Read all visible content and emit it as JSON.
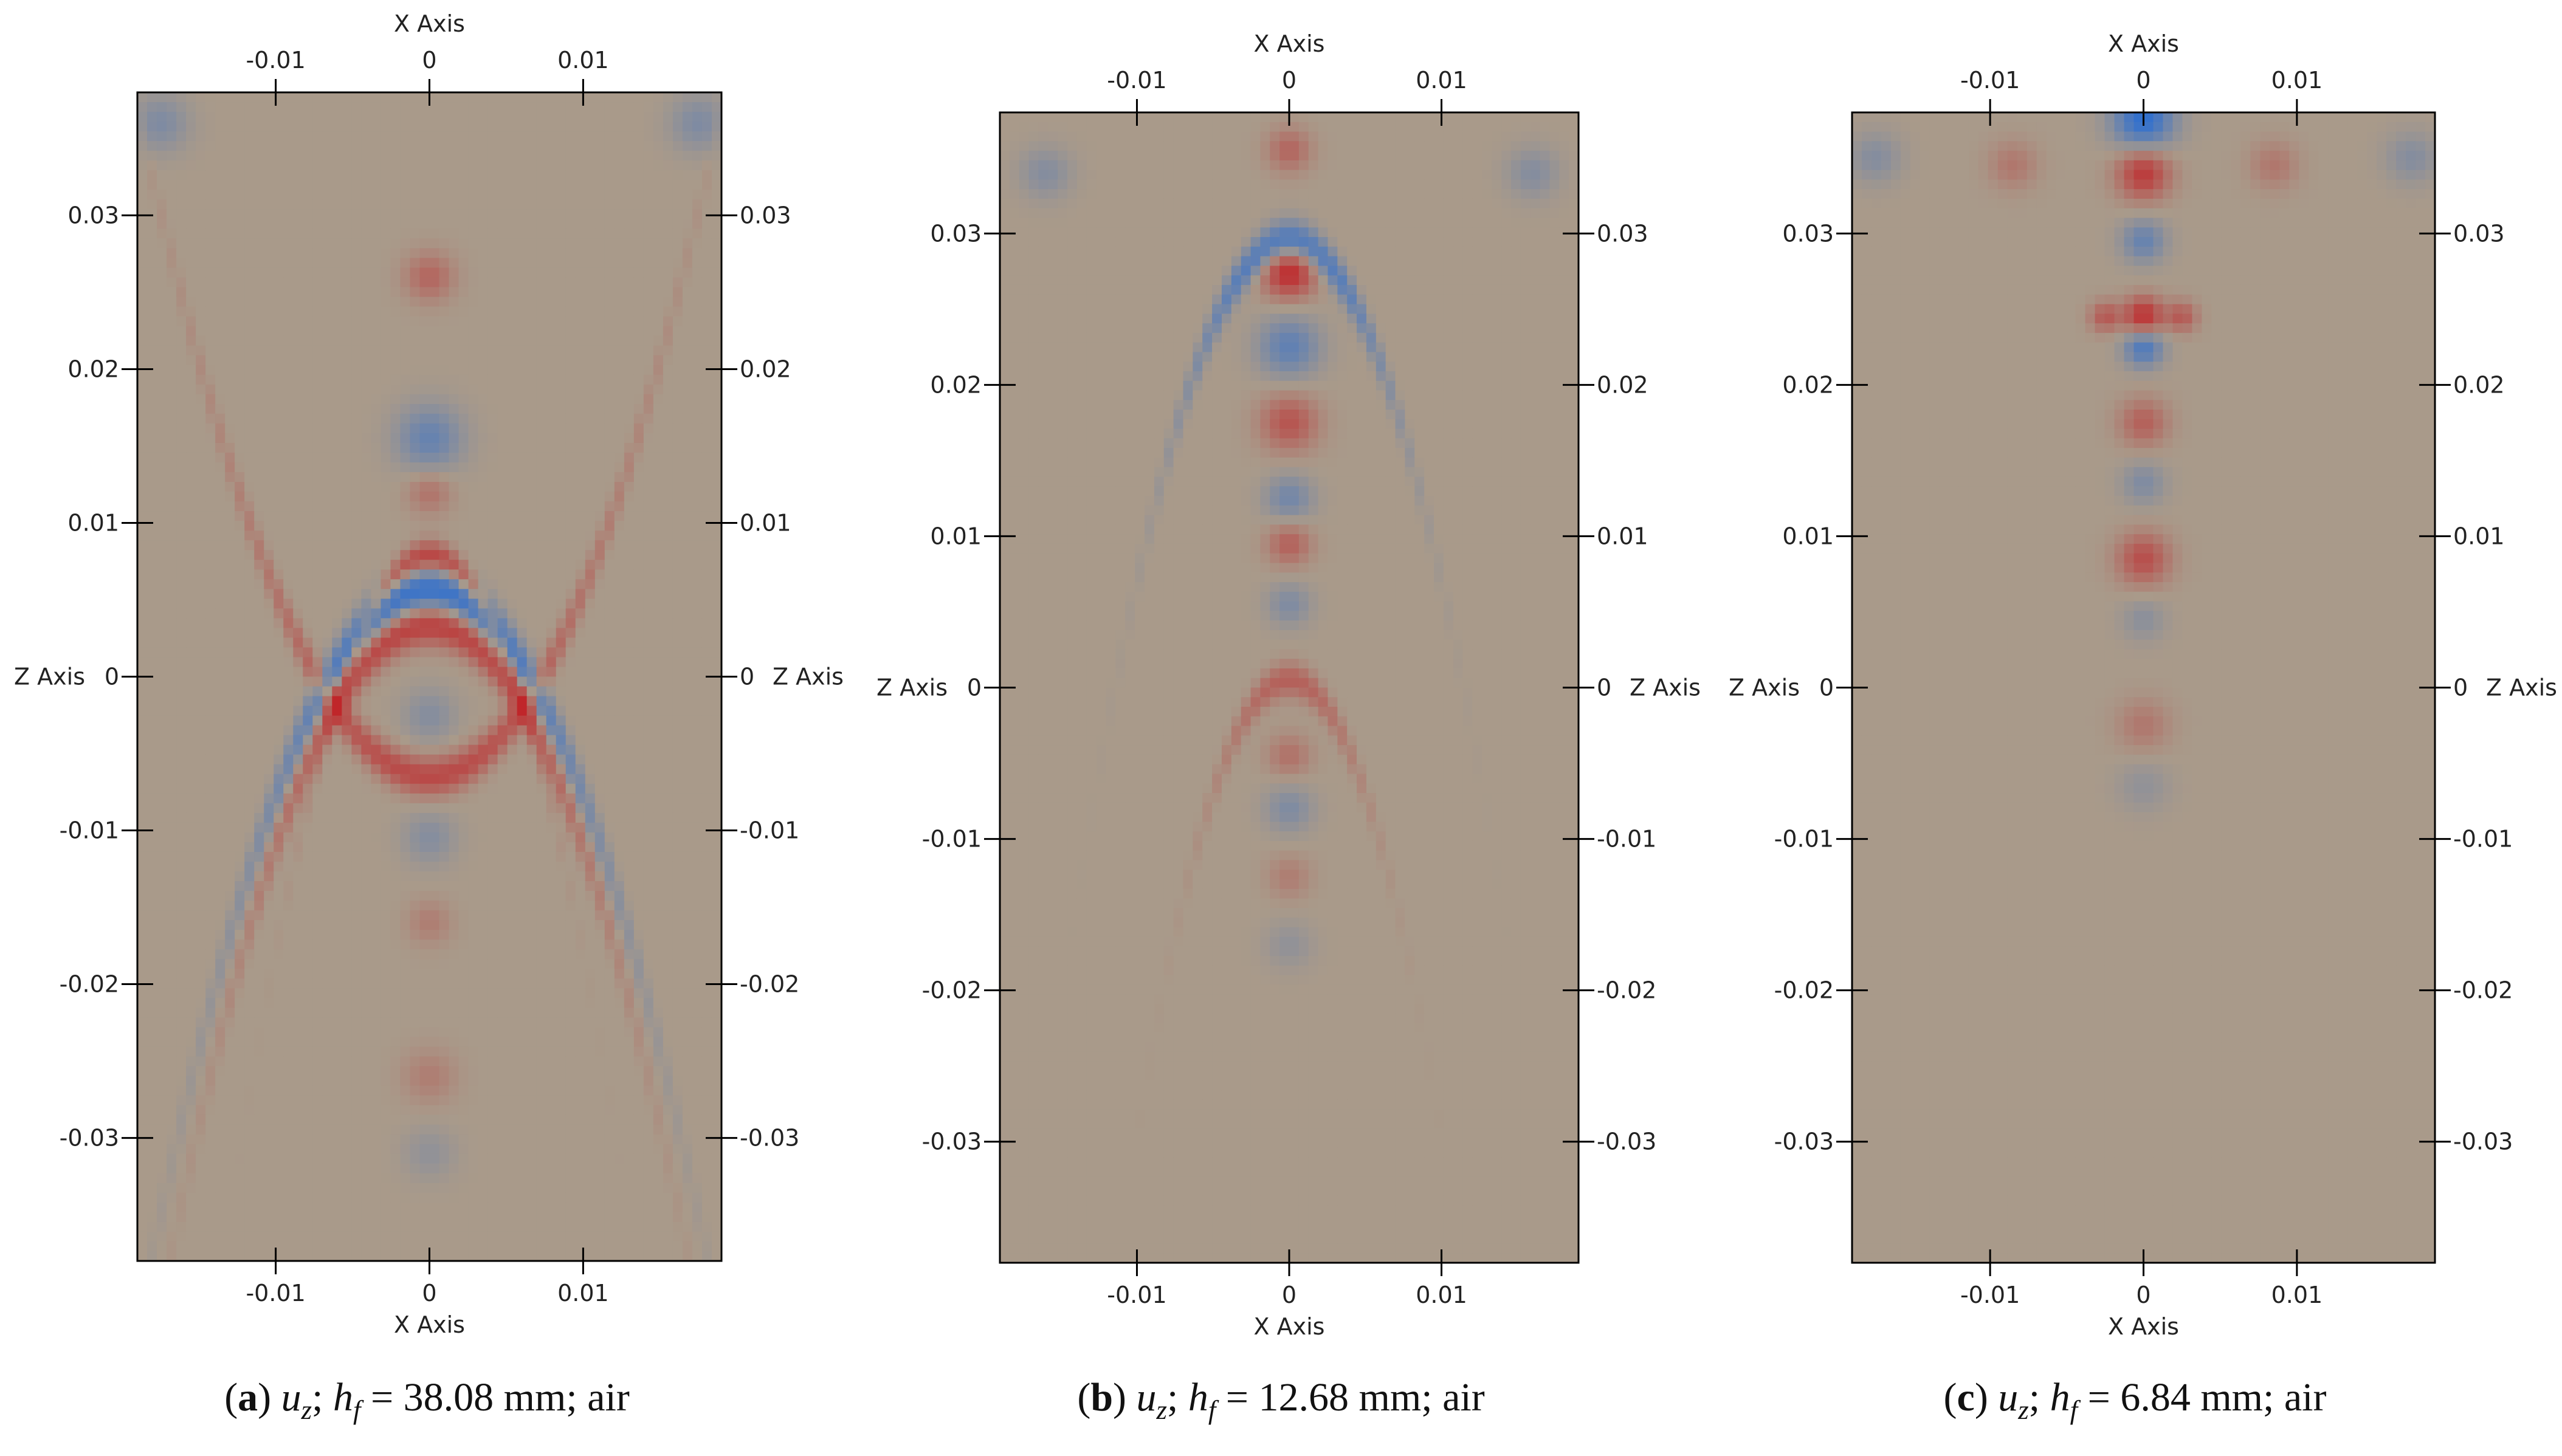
{
  "chart_data": [
    {
      "type": "heatmap",
      "panel": "(a)",
      "caption": {
        "label": "a",
        "quantity": "u",
        "quantity_sub": "z",
        "symbol": "h",
        "symbol_sub": "f",
        "value": "38.08 mm",
        "medium": "air"
      },
      "xlabel": "X Axis",
      "zlabel": "Z Axis",
      "xlim": [
        -0.019,
        0.019
      ],
      "zlim": [
        -0.038,
        0.038
      ],
      "x_ticks": [
        -0.01,
        0,
        0.01
      ],
      "x_tick_labels": [
        "-0.01",
        "0",
        "0.01"
      ],
      "z_ticks": [
        -0.03,
        -0.02,
        -0.01,
        0,
        0.01,
        0.02,
        0.03
      ],
      "z_tick_labels": [
        "-0.03",
        "-0.02",
        "-0.01",
        "0",
        "0.01",
        "0.02",
        "0.03"
      ],
      "colormap": {
        "negative": "#2f6fcf",
        "neutral": "#a99a8a",
        "positive": "#c0262a"
      },
      "features": [
        {
          "kind": "arc",
          "x": 0,
          "z": 0.0055,
          "a": 0.0068,
          "w": 0.0011,
          "sign": -1,
          "amp": 1.0
        },
        {
          "kind": "arc",
          "x": 0,
          "z": 0.0035,
          "a": 0.0062,
          "w": 0.001,
          "sign": 1,
          "amp": 0.9
        },
        {
          "kind": "arc",
          "x": 0,
          "z": 0.0078,
          "a": 0.0035,
          "w": 0.0007,
          "sign": 1,
          "amp": 0.8
        },
        {
          "kind": "arc",
          "x": 0,
          "z": -0.0065,
          "a": -0.0075,
          "w": 0.0009,
          "sign": 1,
          "amp": 0.7
        },
        {
          "kind": "blob",
          "x": 0,
          "z": 0.026,
          "r": 0.0011,
          "sign": 1,
          "amp": 0.45
        },
        {
          "kind": "blob",
          "x": 0,
          "z": 0.0155,
          "r": 0.0015,
          "sign": -1,
          "amp": 0.55
        },
        {
          "kind": "blob",
          "x": 0,
          "z": 0.012,
          "r": 0.001,
          "sign": 1,
          "amp": 0.35
        },
        {
          "kind": "blob",
          "x": 0,
          "z": -0.0025,
          "r": 0.0012,
          "sign": -1,
          "amp": 0.3
        },
        {
          "kind": "blob",
          "x": 0,
          "z": -0.0105,
          "r": 0.0012,
          "sign": -1,
          "amp": 0.3
        },
        {
          "kind": "blob",
          "x": 0,
          "z": -0.016,
          "r": 0.001,
          "sign": 1,
          "amp": 0.25
        },
        {
          "kind": "blob",
          "x": 0,
          "z": -0.026,
          "r": 0.0012,
          "sign": 1,
          "amp": 0.25
        },
        {
          "kind": "blob",
          "x": 0,
          "z": -0.031,
          "r": 0.0012,
          "sign": -1,
          "amp": 0.2
        },
        {
          "kind": "blob",
          "x": -0.0175,
          "z": 0.036,
          "r": 0.0013,
          "sign": -1,
          "amp": 0.35
        },
        {
          "kind": "blob",
          "x": 0.0175,
          "z": 0.036,
          "r": 0.0013,
          "sign": -1,
          "amp": 0.35
        }
      ]
    },
    {
      "type": "heatmap",
      "panel": "(b)",
      "caption": {
        "label": "b",
        "quantity": "u",
        "quantity_sub": "z",
        "symbol": "h",
        "symbol_sub": "f",
        "value": "12.68 mm",
        "medium": "air"
      },
      "xlabel": "X Axis",
      "zlabel": "Z Axis",
      "xlim": [
        -0.019,
        0.019
      ],
      "zlim": [
        -0.038,
        0.038
      ],
      "x_ticks": [
        -0.01,
        0,
        0.01
      ],
      "x_tick_labels": [
        "-0.01",
        "0",
        "0.01"
      ],
      "z_ticks": [
        -0.03,
        -0.02,
        -0.01,
        0,
        0.01,
        0.02,
        0.03
      ],
      "z_tick_labels": [
        "-0.03",
        "-0.02",
        "-0.01",
        "0",
        "0.01",
        "0.02",
        "0.03"
      ],
      "colormap": {
        "negative": "#2f6fcf",
        "neutral": "#a99a8a",
        "positive": "#c0262a"
      },
      "features": [
        {
          "kind": "arc",
          "x": 0,
          "z": 0.0295,
          "a": 0.004,
          "w": 0.0009,
          "sign": -1,
          "amp": 0.9
        },
        {
          "kind": "blob",
          "x": 0,
          "z": 0.0275,
          "r": 0.0012,
          "sign": 1,
          "amp": 1.0
        },
        {
          "kind": "blob",
          "x": 0,
          "z": 0.0225,
          "r": 0.0014,
          "sign": -1,
          "amp": 0.6
        },
        {
          "kind": "blob",
          "x": 0,
          "z": 0.0175,
          "r": 0.0013,
          "sign": 1,
          "amp": 0.6
        },
        {
          "kind": "blob",
          "x": 0,
          "z": 0.0125,
          "r": 0.0011,
          "sign": -1,
          "amp": 0.45
        },
        {
          "kind": "blob",
          "x": 0,
          "z": 0.0095,
          "r": 0.001,
          "sign": 1,
          "amp": 0.5
        },
        {
          "kind": "blob",
          "x": 0,
          "z": 0.0055,
          "r": 0.001,
          "sign": -1,
          "amp": 0.35
        },
        {
          "kind": "arc",
          "x": 0,
          "z": 0.0005,
          "a": 0.003,
          "w": 0.0008,
          "sign": 1,
          "amp": 0.5
        },
        {
          "kind": "blob",
          "x": 0,
          "z": -0.0045,
          "r": 0.001,
          "sign": 1,
          "amp": 0.35
        },
        {
          "kind": "blob",
          "x": 0,
          "z": -0.008,
          "r": 0.0011,
          "sign": -1,
          "amp": 0.35
        },
        {
          "kind": "blob",
          "x": 0,
          "z": -0.0125,
          "r": 0.001,
          "sign": 1,
          "amp": 0.25
        },
        {
          "kind": "blob",
          "x": 0,
          "z": -0.017,
          "r": 0.0011,
          "sign": -1,
          "amp": 0.2
        },
        {
          "kind": "blob",
          "x": 0,
          "z": 0.0355,
          "r": 0.001,
          "sign": 1,
          "amp": 0.45
        },
        {
          "kind": "blob",
          "x": -0.016,
          "z": 0.034,
          "r": 0.0012,
          "sign": -1,
          "amp": 0.3
        },
        {
          "kind": "blob",
          "x": 0.016,
          "z": 0.034,
          "r": 0.0012,
          "sign": -1,
          "amp": 0.3
        }
      ]
    },
    {
      "type": "heatmap",
      "panel": "(c)",
      "caption": {
        "label": "c",
        "quantity": "u",
        "quantity_sub": "z",
        "symbol": "h",
        "symbol_sub": "f",
        "value": "6.84 mm",
        "medium": "air"
      },
      "xlabel": "X Axis",
      "zlabel": "Z Axis",
      "xlim": [
        -0.019,
        0.019
      ],
      "zlim": [
        -0.038,
        0.038
      ],
      "x_ticks": [
        -0.01,
        0,
        0.01
      ],
      "x_tick_labels": [
        "-0.01",
        "0",
        "0.01"
      ],
      "z_ticks": [
        -0.03,
        -0.02,
        -0.01,
        0,
        0.01,
        0.02,
        0.03
      ],
      "z_tick_labels": [
        "-0.03",
        "-0.02",
        "-0.01",
        "0",
        "0.01",
        "0.02",
        "0.03"
      ],
      "colormap": {
        "negative": "#2f6fcf",
        "neutral": "#a99a8a",
        "positive": "#c0262a"
      },
      "features": [
        {
          "kind": "blob",
          "x": 0,
          "z": 0.0375,
          "r": 0.0014,
          "sign": -1,
          "amp": 1.0
        },
        {
          "kind": "blob",
          "x": 0,
          "z": 0.034,
          "r": 0.0012,
          "sign": 1,
          "amp": 0.85
        },
        {
          "kind": "blob",
          "x": 0,
          "z": 0.0295,
          "r": 0.001,
          "sign": -1,
          "amp": 0.55
        },
        {
          "kind": "blob",
          "x": 0,
          "z": 0.0245,
          "r": 0.0009,
          "sign": 1,
          "amp": 0.95
        },
        {
          "kind": "blob",
          "x": 0,
          "z": 0.0225,
          "r": 0.0009,
          "sign": -1,
          "amp": 0.8
        },
        {
          "kind": "blob",
          "x": -0.0025,
          "z": 0.0245,
          "r": 0.0007,
          "sign": 1,
          "amp": 0.55
        },
        {
          "kind": "blob",
          "x": 0.0025,
          "z": 0.0245,
          "r": 0.0007,
          "sign": 1,
          "amp": 0.55
        },
        {
          "kind": "blob",
          "x": 0,
          "z": 0.0175,
          "r": 0.0011,
          "sign": 1,
          "amp": 0.5
        },
        {
          "kind": "blob",
          "x": 0,
          "z": 0.0135,
          "r": 0.001,
          "sign": -1,
          "amp": 0.35
        },
        {
          "kind": "blob",
          "x": 0,
          "z": 0.0085,
          "r": 0.0012,
          "sign": 1,
          "amp": 0.65
        },
        {
          "kind": "blob",
          "x": 0,
          "z": 0.0045,
          "r": 0.001,
          "sign": -1,
          "amp": 0.25
        },
        {
          "kind": "blob",
          "x": 0,
          "z": -0.0025,
          "r": 0.0012,
          "sign": 1,
          "amp": 0.3
        },
        {
          "kind": "blob",
          "x": 0,
          "z": -0.0065,
          "r": 0.0012,
          "sign": -1,
          "amp": 0.2
        },
        {
          "kind": "blob",
          "x": -0.0085,
          "z": 0.0345,
          "r": 0.0011,
          "sign": 1,
          "amp": 0.3
        },
        {
          "kind": "blob",
          "x": 0.0085,
          "z": 0.0345,
          "r": 0.0011,
          "sign": 1,
          "amp": 0.3
        },
        {
          "kind": "blob",
          "x": -0.0175,
          "z": 0.035,
          "r": 0.0012,
          "sign": -1,
          "amp": 0.3
        },
        {
          "kind": "blob",
          "x": 0.0175,
          "z": 0.035,
          "r": 0.0012,
          "sign": -1,
          "amp": 0.3
        }
      ]
    }
  ]
}
